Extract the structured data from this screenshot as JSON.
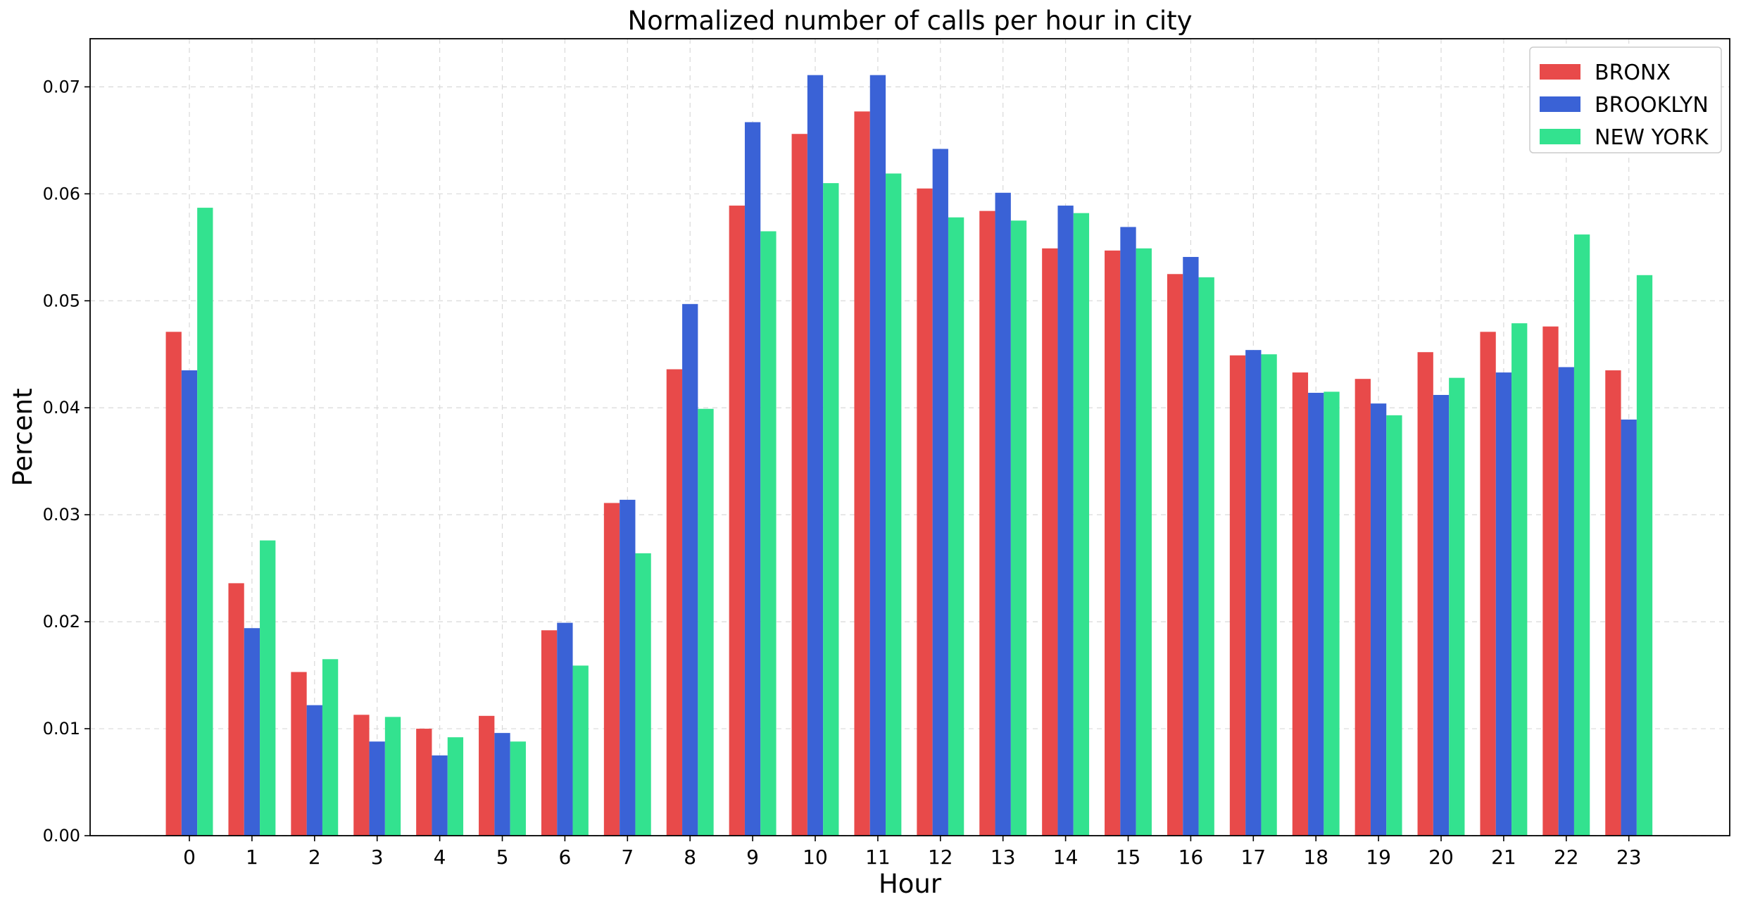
{
  "chart_data": {
    "type": "bar",
    "title": "Normalized number of calls per hour in city",
    "xlabel": "Hour",
    "ylabel": "Percent",
    "ylim": [
      0,
      0.0745
    ],
    "yticks": [
      "0.00",
      "0.01",
      "0.02",
      "0.03",
      "0.04",
      "0.05",
      "0.06",
      "0.07"
    ],
    "categories": [
      "0",
      "1",
      "2",
      "3",
      "4",
      "5",
      "6",
      "7",
      "8",
      "9",
      "10",
      "11",
      "12",
      "13",
      "14",
      "15",
      "16",
      "17",
      "18",
      "19",
      "20",
      "21",
      "22",
      "23"
    ],
    "grid": true,
    "legend_position": "top-right",
    "series": [
      {
        "name": "BRONX",
        "color": "#e84a4a",
        "values": [
          0.0471,
          0.0236,
          0.0153,
          0.0113,
          0.01,
          0.0112,
          0.0192,
          0.0311,
          0.0436,
          0.0589,
          0.0656,
          0.0677,
          0.0605,
          0.0584,
          0.0549,
          0.0547,
          0.0525,
          0.0449,
          0.0433,
          0.0427,
          0.0452,
          0.0471,
          0.0476,
          0.0435
        ]
      },
      {
        "name": "BROOKLYN",
        "color": "#3a62d6",
        "values": [
          0.0435,
          0.0194,
          0.0122,
          0.0088,
          0.0075,
          0.0096,
          0.0199,
          0.0314,
          0.0497,
          0.0667,
          0.0711,
          0.0711,
          0.0642,
          0.0601,
          0.0589,
          0.0569,
          0.0541,
          0.0454,
          0.0414,
          0.0404,
          0.0412,
          0.0433,
          0.0438,
          0.0389
        ]
      },
      {
        "name": "NEW YORK",
        "color": "#33e28f",
        "values": [
          0.0587,
          0.0276,
          0.0165,
          0.0111,
          0.0092,
          0.0088,
          0.0159,
          0.0264,
          0.0399,
          0.0565,
          0.061,
          0.0619,
          0.0578,
          0.0575,
          0.0582,
          0.0549,
          0.0522,
          0.045,
          0.0415,
          0.0393,
          0.0428,
          0.0479,
          0.0562,
          0.0524
        ]
      }
    ]
  }
}
